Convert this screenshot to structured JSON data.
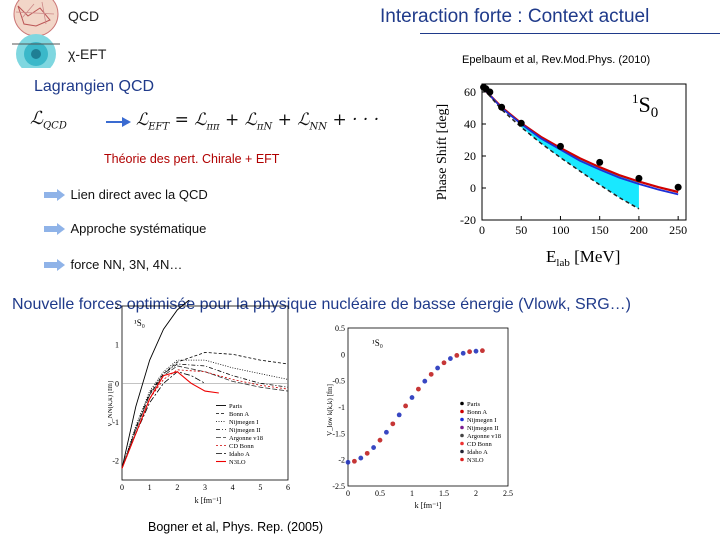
{
  "slide": {
    "title": "Interaction forte : Context actuel",
    "logo_top": "QCD",
    "logo_bottom": "χ-EFT",
    "reference_top": "Epelbaum et al, Rev.Mod.Phys. (2010)",
    "lagrangian_title": "Lagrangien QCD",
    "lagrangian_lhs_main": "ℒ",
    "lagrangian_lhs_sub": "QCD",
    "lagrangian_rhs_a": "ℒ",
    "lagrangian_rhs_a_sub": "EFT",
    "lagrangian_rhs_b": " = ℒ",
    "lagrangian_rhs_b_sub": "ππ",
    "lagrangian_rhs_c": " + ℒ",
    "lagrangian_rhs_c_sub": "πN",
    "lagrangian_rhs_d": " + ℒ",
    "lagrangian_rhs_d_sub": "NN",
    "lagrangian_rhs_e": " + · · ·",
    "chiral_label": "Théorie des pert. Chirale + EFT",
    "bullets": [
      "Lien direct avec la QCD",
      "Approche systématique",
      "force NN, 3N, 4N…"
    ],
    "headline": "Nouvelle forces optimisée pour la physique nucléaire de basse énergie (Vlowk, SRG…)",
    "reference_bottom": "Bogner et al, Phys. Rep. (2005)",
    "colors": {
      "title_blue": "#1f3a8a",
      "chiral_red": "#b00000",
      "band_cyan": "#00e5ff",
      "arrow_blue": "#3a6bd1"
    }
  },
  "chart_data": [
    {
      "type": "line",
      "panel": "phase-shift",
      "xlabel_main": "E",
      "xlabel_sub": "lab",
      "xlabel_unit": "[MeV]",
      "ylabel": "Phase Shift  [deg]",
      "annotation": "¹S₀",
      "annotation_sup": "1",
      "annotation_main": "S",
      "annotation_sub": "0",
      "xlim": [
        0,
        260
      ],
      "ylim": [
        -20,
        65
      ],
      "xticks": [
        0,
        50,
        100,
        150,
        200,
        250
      ],
      "yticks": [
        -20,
        0,
        20,
        40,
        60
      ],
      "series": [
        {
          "style": "red-solid",
          "x": [
            2,
            10,
            25,
            50,
            75,
            100,
            125,
            150,
            175,
            200,
            225,
            250
          ],
          "y": [
            62,
            58,
            50.5,
            40.5,
            32,
            25,
            18.5,
            13,
            8,
            4,
            0.5,
            -2.5
          ]
        },
        {
          "style": "blue-solid",
          "x": [
            2,
            10,
            25,
            50,
            75,
            100,
            125,
            150,
            175,
            200,
            225,
            250
          ],
          "y": [
            62,
            58,
            50,
            40,
            31,
            24,
            17,
            11.5,
            6.5,
            2.5,
            -1,
            -4
          ]
        },
        {
          "style": "dashed",
          "x": [
            2,
            10,
            25,
            50,
            75,
            100,
            125,
            150,
            175,
            200
          ],
          "y": [
            62,
            57.5,
            49,
            38,
            28,
            19,
            10.5,
            2,
            -6,
            -13
          ]
        }
      ],
      "band": {
        "x": [
          50,
          75,
          100,
          125,
          150,
          175,
          200
        ],
        "upper": [
          40,
          32,
          25,
          18.5,
          13,
          8,
          4
        ],
        "lower": [
          38,
          28,
          19,
          10.5,
          2,
          -6,
          -13
        ]
      },
      "points": {
        "x": [
          2,
          5,
          10,
          25,
          50,
          100,
          150,
          200,
          250
        ],
        "y": [
          63,
          62,
          60,
          50.5,
          40.5,
          26,
          16,
          6,
          0.5
        ]
      }
    },
    {
      "type": "line",
      "panel": "vnn",
      "xlabel": "k [fm⁻¹]",
      "ylabel": "V_NN(k,k) [fm]",
      "annotation": "¹S₀",
      "xlim": [
        0,
        6
      ],
      "ylim": [
        -2.5,
        2
      ],
      "xticks": [
        0,
        1,
        2,
        3,
        4,
        5,
        6
      ],
      "yticks": [
        -2,
        -1,
        0,
        1,
        2
      ],
      "legend": [
        "Paris",
        "Bonn A",
        "Nijmegen I",
        "Nijmegen II",
        "Argonne v18",
        "CD Bonn",
        "Idaho A",
        "N3LO"
      ],
      "series": [
        {
          "name": "Paris",
          "x": [
            0,
            0.5,
            1,
            1.5,
            2,
            2.5
          ],
          "y": [
            -2.2,
            -0.6,
            0.6,
            1.4,
            1.9,
            2.2
          ]
        },
        {
          "name": "Bonn A",
          "x": [
            0,
            0.5,
            1,
            1.5,
            2,
            3,
            4,
            5,
            6
          ],
          "y": [
            -2.2,
            -1.2,
            -0.3,
            0.25,
            0.55,
            0.8,
            0.75,
            0.6,
            0.5
          ]
        },
        {
          "name": "Nijmegen I",
          "x": [
            0,
            0.5,
            1,
            1.5,
            2,
            3,
            4,
            5,
            6
          ],
          "y": [
            -2.2,
            -1.1,
            -0.2,
            0.3,
            0.6,
            0.6,
            0.4,
            0.25,
            0.1
          ]
        },
        {
          "name": "Nijmegen II",
          "x": [
            0,
            0.5,
            1,
            1.5,
            2,
            3,
            4,
            5,
            6
          ],
          "y": [
            -2.2,
            -1.15,
            -0.25,
            0.25,
            0.5,
            0.45,
            0.2,
            0.0,
            -0.1
          ]
        },
        {
          "name": "Argonne v18",
          "x": [
            0,
            0.5,
            1,
            1.5,
            2,
            3,
            4,
            5,
            6
          ],
          "y": [
            -2.2,
            -1.2,
            -0.3,
            0.2,
            0.45,
            0.3,
            0.05,
            -0.1,
            -0.2
          ]
        },
        {
          "name": "CD Bonn",
          "x": [
            0,
            0.5,
            1,
            1.5,
            2,
            3,
            4,
            5,
            6
          ],
          "y": [
            -2.2,
            -1.3,
            -0.4,
            0.1,
            0.35,
            0.3,
            0.1,
            -0.05,
            -0.15
          ]
        },
        {
          "name": "Idaho A",
          "x": [
            0,
            0.5,
            1,
            1.5,
            2,
            2.5,
            3
          ],
          "y": [
            -2.2,
            -1.3,
            -0.5,
            0.0,
            0.3,
            0.2,
            0.0
          ]
        },
        {
          "name": "N3LO",
          "x": [
            0,
            0.5,
            1,
            1.5,
            2,
            2.5,
            3,
            3.5
          ],
          "y": [
            -2.2,
            -1.3,
            -0.4,
            0.2,
            0.3,
            0.0,
            -0.2,
            -0.25
          ]
        }
      ]
    },
    {
      "type": "scatter",
      "panel": "vlowk",
      "xlabel": "k [fm⁻¹]",
      "ylabel": "V_low k(k,k) [fm]",
      "annotation": "¹S₀",
      "xlim": [
        0,
        2.5
      ],
      "ylim": [
        -2.5,
        0.5
      ],
      "xticks": [
        0,
        0.5,
        1,
        1.5,
        2,
        2.5
      ],
      "yticks": [
        -2.5,
        -2,
        -1.5,
        -1,
        -0.5,
        0,
        0.5
      ],
      "legend": [
        "Paris",
        "Bonn A",
        "Nijmegen I",
        "Nijmegen II",
        "Argonne v18",
        "CD Bonn",
        "Idaho A",
        "N3LO"
      ],
      "x": [
        0,
        0.1,
        0.2,
        0.3,
        0.4,
        0.5,
        0.6,
        0.7,
        0.8,
        0.9,
        1.0,
        1.1,
        1.2,
        1.3,
        1.4,
        1.5,
        1.6,
        1.7,
        1.8,
        1.9,
        2.0,
        2.1
      ],
      "y": [
        -2.05,
        -2.03,
        -1.97,
        -1.88,
        -1.77,
        -1.63,
        -1.48,
        -1.32,
        -1.15,
        -0.98,
        -0.82,
        -0.66,
        -0.51,
        -0.38,
        -0.26,
        -0.16,
        -0.08,
        -0.02,
        0.02,
        0.05,
        0.06,
        0.07
      ]
    }
  ]
}
